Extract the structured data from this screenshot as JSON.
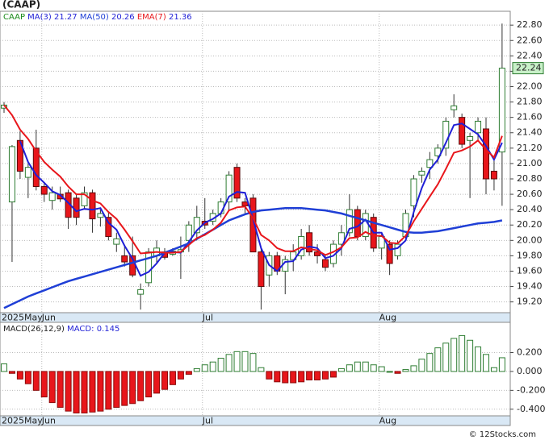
{
  "chart_data": {
    "type": "candlestick",
    "title": "(CAAP)",
    "ticker": "CAAP",
    "ticker_color": "#1a8a1a",
    "ohlc": [
      [
        21.72,
        21.8,
        21.66,
        21.76
      ],
      [
        20.5,
        21.24,
        19.72,
        21.22
      ],
      [
        21.3,
        21.42,
        20.8,
        20.9
      ],
      [
        20.82,
        21.0,
        20.55,
        20.95
      ],
      [
        21.2,
        21.44,
        20.65,
        20.7
      ],
      [
        20.7,
        20.75,
        20.5,
        20.6
      ],
      [
        20.52,
        20.7,
        20.4,
        20.62
      ],
      [
        20.6,
        20.7,
        20.5,
        20.54
      ],
      [
        20.62,
        20.66,
        20.15,
        20.3
      ],
      [
        20.55,
        20.6,
        20.2,
        20.3
      ],
      [
        20.45,
        20.7,
        20.4,
        20.62
      ],
      [
        20.62,
        20.66,
        20.1,
        20.28
      ],
      [
        20.3,
        20.4,
        20.18,
        20.35
      ],
      [
        20.3,
        20.36,
        20.0,
        20.05
      ],
      [
        19.95,
        20.1,
        19.85,
        20.02
      ],
      [
        19.8,
        19.92,
        19.66,
        19.72
      ],
      [
        19.8,
        20.05,
        19.52,
        19.55
      ],
      [
        19.3,
        19.44,
        19.1,
        19.36
      ],
      [
        19.45,
        19.9,
        19.4,
        19.85
      ],
      [
        19.8,
        20.0,
        19.7,
        19.9
      ],
      [
        19.85,
        19.9,
        19.75,
        19.78
      ],
      [
        19.82,
        19.9,
        19.8,
        19.86
      ],
      [
        19.85,
        20.05,
        19.5,
        19.88
      ],
      [
        20.0,
        20.25,
        19.85,
        20.2
      ],
      [
        20.1,
        20.45,
        20.0,
        20.3
      ],
      [
        20.25,
        20.55,
        20.15,
        20.2
      ],
      [
        20.25,
        20.4,
        20.2,
        20.35
      ],
      [
        20.35,
        20.55,
        20.3,
        20.5
      ],
      [
        20.5,
        20.9,
        20.4,
        20.85
      ],
      [
        20.95,
        21.0,
        20.5,
        20.55
      ],
      [
        20.5,
        20.55,
        20.35,
        20.45
      ],
      [
        20.55,
        20.6,
        19.85,
        19.85
      ],
      [
        19.85,
        19.9,
        19.1,
        19.4
      ],
      [
        19.55,
        19.85,
        19.4,
        19.8
      ],
      [
        19.8,
        19.85,
        19.55,
        19.6
      ],
      [
        19.6,
        19.8,
        19.3,
        19.75
      ],
      [
        19.75,
        19.95,
        19.6,
        19.85
      ],
      [
        19.8,
        20.15,
        19.75,
        20.05
      ],
      [
        20.1,
        20.2,
        19.8,
        19.85
      ],
      [
        19.85,
        19.95,
        19.7,
        19.8
      ],
      [
        19.75,
        19.8,
        19.6,
        19.65
      ],
      [
        19.7,
        20.0,
        19.65,
        19.95
      ],
      [
        19.95,
        20.2,
        19.8,
        20.1
      ],
      [
        20.1,
        20.6,
        20.05,
        20.4
      ],
      [
        20.4,
        20.45,
        20.0,
        20.05
      ],
      [
        20.05,
        20.4,
        20.0,
        20.35
      ],
      [
        20.3,
        20.35,
        19.85,
        19.9
      ],
      [
        19.9,
        20.1,
        19.75,
        20.05
      ],
      [
        19.95,
        20.0,
        19.55,
        19.7
      ],
      [
        19.8,
        20.0,
        19.75,
        19.95
      ],
      [
        20.05,
        20.4,
        20.0,
        20.35
      ],
      [
        20.45,
        20.85,
        20.3,
        20.8
      ],
      [
        20.85,
        20.95,
        20.75,
        20.9
      ],
      [
        20.95,
        21.15,
        20.8,
        21.05
      ],
      [
        21.1,
        21.25,
        21.0,
        21.2
      ],
      [
        21.2,
        21.6,
        21.1,
        21.55
      ],
      [
        21.7,
        21.9,
        21.6,
        21.75
      ],
      [
        21.6,
        21.65,
        21.2,
        21.25
      ],
      [
        21.3,
        21.4,
        20.55,
        21.35
      ],
      [
        21.4,
        21.6,
        21.3,
        21.55
      ],
      [
        21.45,
        21.6,
        20.6,
        20.8
      ],
      [
        20.9,
        21.1,
        20.65,
        20.8
      ],
      [
        21.15,
        22.82,
        20.45,
        22.24
      ]
    ],
    "up_color": "#2e7d32",
    "down_color": "#e8161b",
    "series": [
      {
        "name": "MA(3)",
        "color": "#1f1fd6",
        "width": 2,
        "last": 21.27,
        "values": [
          null,
          null,
          21.29,
          21.02,
          20.85,
          20.75,
          20.64,
          20.59,
          20.49,
          20.38,
          20.41,
          20.4,
          20.42,
          20.23,
          20.14,
          19.93,
          19.76,
          19.54,
          19.59,
          19.7,
          19.84,
          19.85,
          19.84,
          19.98,
          20.13,
          20.23,
          20.28,
          20.35,
          20.57,
          20.63,
          20.62,
          20.28,
          19.9,
          19.68,
          19.6,
          19.72,
          19.73,
          19.88,
          19.92,
          19.9,
          19.77,
          19.8,
          19.9,
          20.15,
          20.18,
          20.27,
          20.1,
          20.1,
          19.88,
          19.9,
          20.0,
          20.37,
          20.68,
          20.92,
          21.05,
          21.27,
          21.5,
          21.52,
          21.45,
          21.38,
          21.23,
          21.05,
          21.27
        ]
      },
      {
        "name": "MA(50)",
        "color": "#1f3fd6",
        "width": 2.5,
        "last": 20.26,
        "values": [
          19.12,
          19.17,
          19.22,
          19.27,
          19.31,
          19.35,
          19.39,
          19.43,
          19.47,
          19.5,
          19.53,
          19.56,
          19.59,
          19.62,
          19.65,
          19.68,
          19.71,
          19.74,
          19.77,
          19.8,
          19.84,
          19.88,
          19.92,
          19.96,
          20.02,
          20.08,
          20.14,
          20.2,
          20.26,
          20.3,
          20.34,
          20.37,
          20.39,
          20.4,
          20.41,
          20.42,
          20.42,
          20.42,
          20.41,
          20.4,
          20.39,
          20.37,
          20.35,
          20.32,
          20.29,
          20.26,
          20.23,
          20.2,
          20.17,
          20.14,
          20.11,
          20.1,
          20.1,
          20.11,
          20.12,
          20.14,
          20.16,
          20.18,
          20.2,
          20.22,
          20.23,
          20.24,
          20.26
        ]
      },
      {
        "name": "EMA(7)",
        "color": "#e8161b",
        "width": 2,
        "last": 21.36,
        "values": [
          21.76,
          21.63,
          21.44,
          21.32,
          21.16,
          21.02,
          20.92,
          20.83,
          20.7,
          20.6,
          20.6,
          20.52,
          20.48,
          20.37,
          20.28,
          20.14,
          19.99,
          19.83,
          19.84,
          19.85,
          19.84,
          19.84,
          19.85,
          19.94,
          20.03,
          20.07,
          20.14,
          20.23,
          20.39,
          20.43,
          20.44,
          20.29,
          20.07,
          20.0,
          19.9,
          19.86,
          19.86,
          19.91,
          19.89,
          19.87,
          19.81,
          19.85,
          19.91,
          20.03,
          20.04,
          20.11,
          20.06,
          20.06,
          19.97,
          19.96,
          20.06,
          20.25,
          20.41,
          20.57,
          20.73,
          20.93,
          21.14,
          21.17,
          21.22,
          21.3,
          21.18,
          21.08,
          21.36
        ]
      }
    ],
    "last_price": 22.24,
    "ylim": [
      19.06,
      22.98
    ],
    "yticks": [
      {
        "value": 19.2,
        "label": "19.20"
      },
      {
        "value": 19.4,
        "label": "19.40"
      },
      {
        "value": 19.6,
        "label": "19.60"
      },
      {
        "value": 19.8,
        "label": "19.80"
      },
      {
        "value": 20.0,
        "label": "20.00"
      },
      {
        "value": 20.2,
        "label": "20.20"
      },
      {
        "value": 20.4,
        "label": "20.40"
      },
      {
        "value": 20.6,
        "label": "20.60"
      },
      {
        "value": 20.8,
        "label": "20.80"
      },
      {
        "value": 21.0,
        "label": "21.00"
      },
      {
        "value": 21.2,
        "label": "21.20"
      },
      {
        "value": 21.4,
        "label": "21.40"
      },
      {
        "value": 21.6,
        "label": "21.60"
      },
      {
        "value": 21.8,
        "label": "21.80"
      },
      {
        "value": 22.0,
        "label": "22.00"
      },
      {
        "value": 22.2,
        "label": "22.20"
      },
      {
        "value": 22.4,
        "label": "22.40"
      },
      {
        "value": 22.6,
        "label": "22.60"
      },
      {
        "value": 22.8,
        "label": "22.80"
      }
    ],
    "date_labels": [
      {
        "label": "2025May",
        "index": 0
      },
      {
        "label": "Jun",
        "index": 5
      },
      {
        "label": "Jul",
        "index": 25
      },
      {
        "label": "Aug",
        "index": 47
      }
    ],
    "grid": true,
    "macd": {
      "name": "MACD(26,12,9)",
      "label": "MACD:",
      "last": 0.145,
      "color": "#1f1fd6",
      "values": [
        0.08,
        -0.02,
        -0.08,
        -0.13,
        -0.2,
        -0.27,
        -0.33,
        -0.38,
        -0.42,
        -0.44,
        -0.44,
        -0.43,
        -0.42,
        -0.4,
        -0.38,
        -0.36,
        -0.34,
        -0.31,
        -0.27,
        -0.23,
        -0.19,
        -0.14,
        -0.08,
        -0.03,
        0.03,
        0.07,
        0.1,
        0.14,
        0.18,
        0.21,
        0.21,
        0.19,
        0.04,
        -0.08,
        -0.11,
        -0.12,
        -0.12,
        -0.11,
        -0.09,
        -0.09,
        -0.08,
        -0.06,
        0.03,
        0.07,
        0.1,
        0.1,
        0.07,
        0.05,
        0.0,
        -0.02,
        0.02,
        0.06,
        0.13,
        0.19,
        0.25,
        0.3,
        0.35,
        0.38,
        0.33,
        0.26,
        0.18,
        0.04,
        0.145
      ],
      "ylim": [
        -0.47,
        0.52
      ],
      "yticks": [
        {
          "value": 0.2,
          "label": "0.200"
        },
        {
          "value": 0,
          "label": "0.000"
        },
        {
          "value": -0.2,
          "label": "-0.200"
        },
        {
          "value": -0.4,
          "label": "-0.400"
        }
      ]
    },
    "footer": "© 12Stocks.com"
  }
}
